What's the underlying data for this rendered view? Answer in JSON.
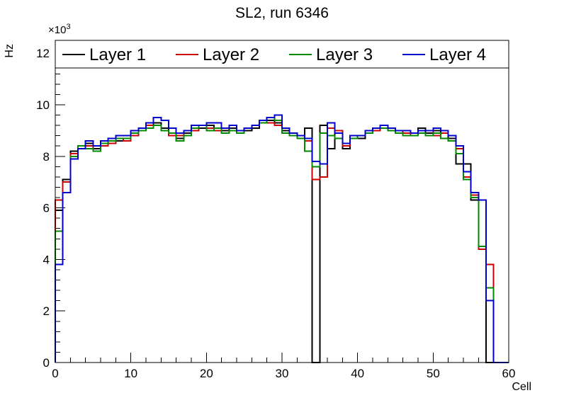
{
  "title": "SL2, run 6346",
  "axes": {
    "y_title": "Hz",
    "x_title": "Cell",
    "y_multiplier": {
      "base": "×10",
      "exponent": "3"
    },
    "y_ticks": [
      0,
      2,
      4,
      6,
      8,
      10,
      12
    ],
    "x_ticks": [
      0,
      10,
      20,
      30,
      40,
      50,
      60
    ]
  },
  "chart_data": {
    "type": "line",
    "subtype": "step-histogram",
    "title": "SL2, run 6346",
    "xlabel": "Cell",
    "ylabel": "Hz",
    "x_range": [
      0,
      60
    ],
    "y_range": [
      0,
      12500
    ],
    "y_unit_multiplier": 1000,
    "bin_width": 1,
    "grid": false,
    "legend_position": "top-inside-horizontal",
    "series": [
      {
        "name": "Layer 1",
        "color": "#000000",
        "values": [
          5900,
          7100,
          8200,
          8400,
          8500,
          8300,
          8500,
          8600,
          8600,
          8700,
          8900,
          9000,
          9200,
          9300,
          9100,
          8900,
          8700,
          8900,
          9100,
          9100,
          9200,
          9100,
          9000,
          9100,
          8900,
          9000,
          9100,
          9300,
          9400,
          9300,
          9000,
          8800,
          8800,
          9100,
          0,
          9200,
          8300,
          8900,
          8300,
          8800,
          8700,
          8900,
          9100,
          9200,
          9000,
          8900,
          9000,
          8900,
          9100,
          8900,
          9000,
          8900,
          8700,
          7700,
          7700,
          6300,
          4400,
          0,
          0,
          0
        ]
      },
      {
        "name": "Layer 2",
        "color": "#cc0000",
        "values": [
          6300,
          7000,
          8100,
          8300,
          8400,
          8200,
          8400,
          8500,
          8700,
          8600,
          8800,
          9100,
          9200,
          9200,
          9000,
          8800,
          8800,
          9000,
          9000,
          9200,
          9100,
          9000,
          8900,
          9000,
          9000,
          9100,
          9200,
          9400,
          9300,
          9200,
          8900,
          8900,
          8700,
          8600,
          7100,
          7200,
          9100,
          9000,
          8400,
          8800,
          8800,
          9000,
          9000,
          9100,
          9100,
          9000,
          8900,
          8800,
          9000,
          9000,
          8800,
          8900,
          8800,
          8300,
          7200,
          6500,
          4400,
          3800,
          0,
          0
        ]
      },
      {
        "name": "Layer 3",
        "color": "#008a00",
        "values": [
          5100,
          6600,
          8000,
          8400,
          8300,
          8200,
          8500,
          8600,
          8700,
          8700,
          8900,
          9000,
          9100,
          9200,
          9000,
          8900,
          8600,
          8800,
          9100,
          9200,
          9000,
          9100,
          8900,
          9000,
          8900,
          9100,
          9200,
          9300,
          9500,
          9400,
          8900,
          8800,
          8700,
          8200,
          7600,
          8900,
          8800,
          8700,
          8500,
          8700,
          8800,
          8900,
          9100,
          9100,
          9000,
          8900,
          8800,
          8800,
          8900,
          8800,
          8900,
          8700,
          8600,
          8100,
          7100,
          6400,
          4500,
          2900,
          0,
          0
        ]
      },
      {
        "name": "Layer 4",
        "color": "#0000cc",
        "values": [
          3800,
          6600,
          7900,
          8300,
          8600,
          8400,
          8600,
          8700,
          8800,
          8800,
          9000,
          9100,
          9300,
          9500,
          9400,
          9100,
          8900,
          9000,
          9200,
          9200,
          9300,
          9300,
          9100,
          9200,
          9000,
          9100,
          9200,
          9400,
          9500,
          9600,
          9100,
          8900,
          8800,
          8700,
          7800,
          7700,
          9300,
          8900,
          8500,
          8800,
          8800,
          9000,
          9100,
          9200,
          9100,
          9000,
          9000,
          8900,
          9000,
          9000,
          9100,
          9000,
          8800,
          8400,
          7400,
          6600,
          6300,
          2400,
          0,
          0
        ]
      }
    ]
  }
}
